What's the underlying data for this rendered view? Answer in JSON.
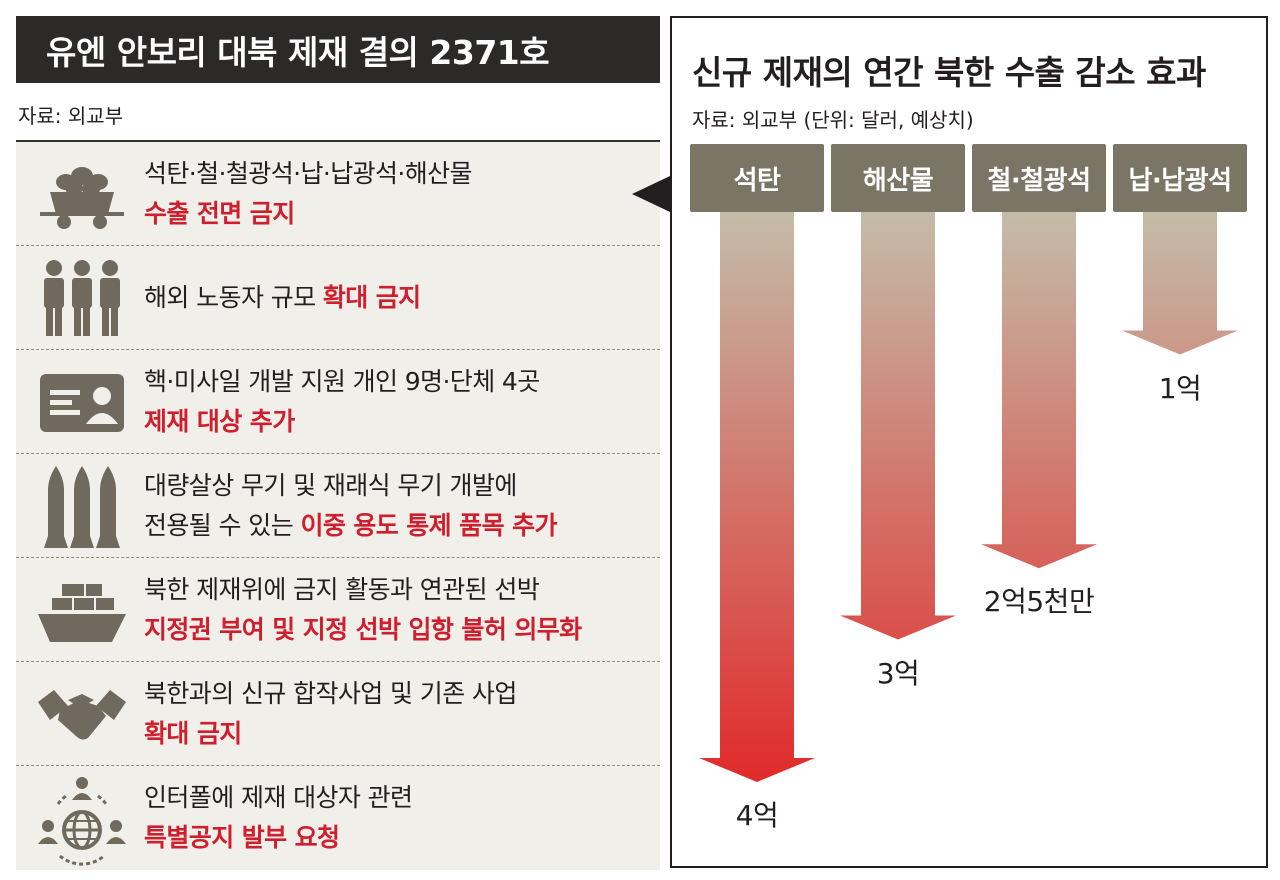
{
  "left": {
    "title": "유엔 안보리 대북 제재 결의 2371호",
    "source": "자료: 외교부",
    "items": [
      {
        "icon": "coal-cart-icon",
        "line1": "석탄·철·철광석·납·납광석·해산물",
        "line2_prefix": "",
        "line2_red": "수출 전면 금지",
        "inline_red": ""
      },
      {
        "icon": "workers-icon",
        "line1": "해외 노동자 규모 ",
        "inline_red": "확대 금지",
        "line2_prefix": "",
        "line2_red": ""
      },
      {
        "icon": "id-card-icon",
        "line1": "핵·미사일 개발 지원 개인 9명·단체 4곳",
        "line2_prefix": "",
        "line2_red": "제재 대상 추가",
        "inline_red": ""
      },
      {
        "icon": "missiles-icon",
        "line1": "대량살상 무기 및 재래식 무기 개발에",
        "line2_prefix": "전용될 수 있는 ",
        "line2_red": "이중 용도 통제 품목 추가",
        "inline_red": ""
      },
      {
        "icon": "cargo-ship-icon",
        "line1": "북한 제재위에 금지 활동과 연관된 선박",
        "line2_prefix": "",
        "line2_red": "지정권 부여 및 지정 선박 입항 불허 의무화",
        "inline_red": ""
      },
      {
        "icon": "handshake-icon",
        "line1": "북한과의 신규 합작사업 및 기존 사업",
        "line2_prefix": "",
        "line2_red": "확대 금지",
        "inline_red": ""
      },
      {
        "icon": "globe-network-icon",
        "line1": "인터폴에 제재 대상자 관련",
        "line2_prefix": "",
        "line2_red": "특별공지 발부 요청",
        "inline_red": ""
      }
    ]
  },
  "chart_data": {
    "type": "bar",
    "title": "신규 제재의 연간 북한 수출 감소 효과",
    "subtitle": "자료: 외교부 (단위: 달러, 예상치)",
    "categories": [
      "석탄",
      "해산물",
      "철·철광석",
      "납·납광석"
    ],
    "values": [
      400000000,
      300000000,
      250000000,
      100000000
    ],
    "value_labels": [
      "4억",
      "3억",
      "2억5천만",
      "1억"
    ],
    "unit": "달러",
    "ylim": [
      0,
      400000000
    ],
    "orientation": "downward-arrows",
    "colors": {
      "bar_top": "#c4bca8",
      "bar_bottom": "#e12a2b",
      "category_box": "#7b7566"
    }
  }
}
